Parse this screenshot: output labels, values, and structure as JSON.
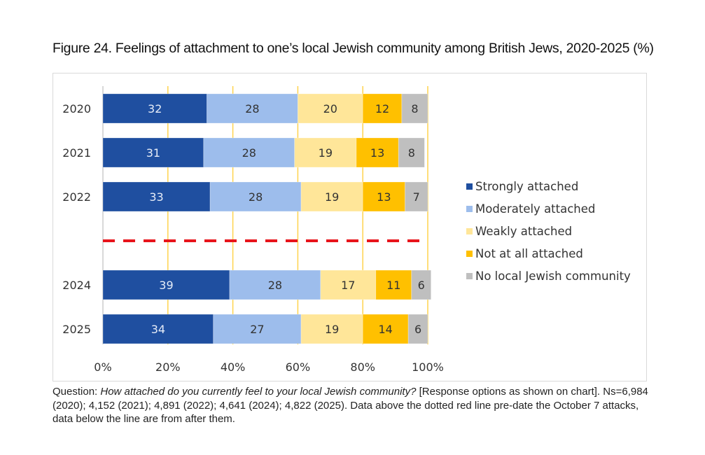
{
  "title": "Figure 24. Feelings of attachment to one’s local Jewish community among British Jews, 2020-2025 (%)",
  "caption": {
    "prefix": "Question: ",
    "question": "How attached do you currently feel to your local Jewish community?",
    "rest": " [Response options as shown on chart]. Ns=6,984 (2020); 4,152 (2021); 4,891 (2022); 4,641 (2024); 4,822 (2025). Data above the dotted red line pre-date the October 7 attacks, data below the line are from after them."
  },
  "chart_data": {
    "type": "bar",
    "orientation": "horizontal",
    "stacked": "100%",
    "title": "Figure 24. Feelings of attachment to one’s local Jewish community among British Jews, 2020-2025 (%)",
    "xlabel": "",
    "ylabel": "",
    "categories": [
      "2020",
      "2021",
      "2022",
      "2024",
      "2025"
    ],
    "gap_after_category": "2022",
    "xlim": [
      0,
      100
    ],
    "xticks": [
      "0%",
      "20%",
      "40%",
      "60%",
      "80%",
      "100%"
    ],
    "xtick_values": [
      0,
      20,
      40,
      60,
      80,
      100
    ],
    "grid": true,
    "legend_position": "right",
    "series": [
      {
        "name": "Strongly attached",
        "color": "#1F4FA0",
        "label_color": "#E6ECF7",
        "values": [
          32,
          31,
          33,
          39,
          34
        ]
      },
      {
        "name": "Moderately attached",
        "color": "#9DBDEC",
        "label_color": "#333333",
        "values": [
          28,
          28,
          28,
          28,
          27
        ]
      },
      {
        "name": "Weakly attached",
        "color": "#FFE699",
        "label_color": "#333333",
        "values": [
          20,
          19,
          19,
          17,
          19
        ]
      },
      {
        "name": "Not at all attached",
        "color": "#FFC000",
        "label_color": "#333333",
        "values": [
          12,
          13,
          13,
          11,
          14
        ]
      },
      {
        "name": "No local Jewish community",
        "color": "#BFBFBF",
        "label_color": "#333333",
        "values": [
          8,
          8,
          7,
          6,
          6
        ]
      }
    ],
    "annotations": [
      {
        "type": "dashed-line",
        "description": "Dotted red line separating pre- and post-October 7 data",
        "between": [
          "2022",
          "2024"
        ],
        "color": "#E8141B"
      }
    ],
    "gridline_color": "#FFD34D",
    "axis_color": "#D9D9D9"
  }
}
